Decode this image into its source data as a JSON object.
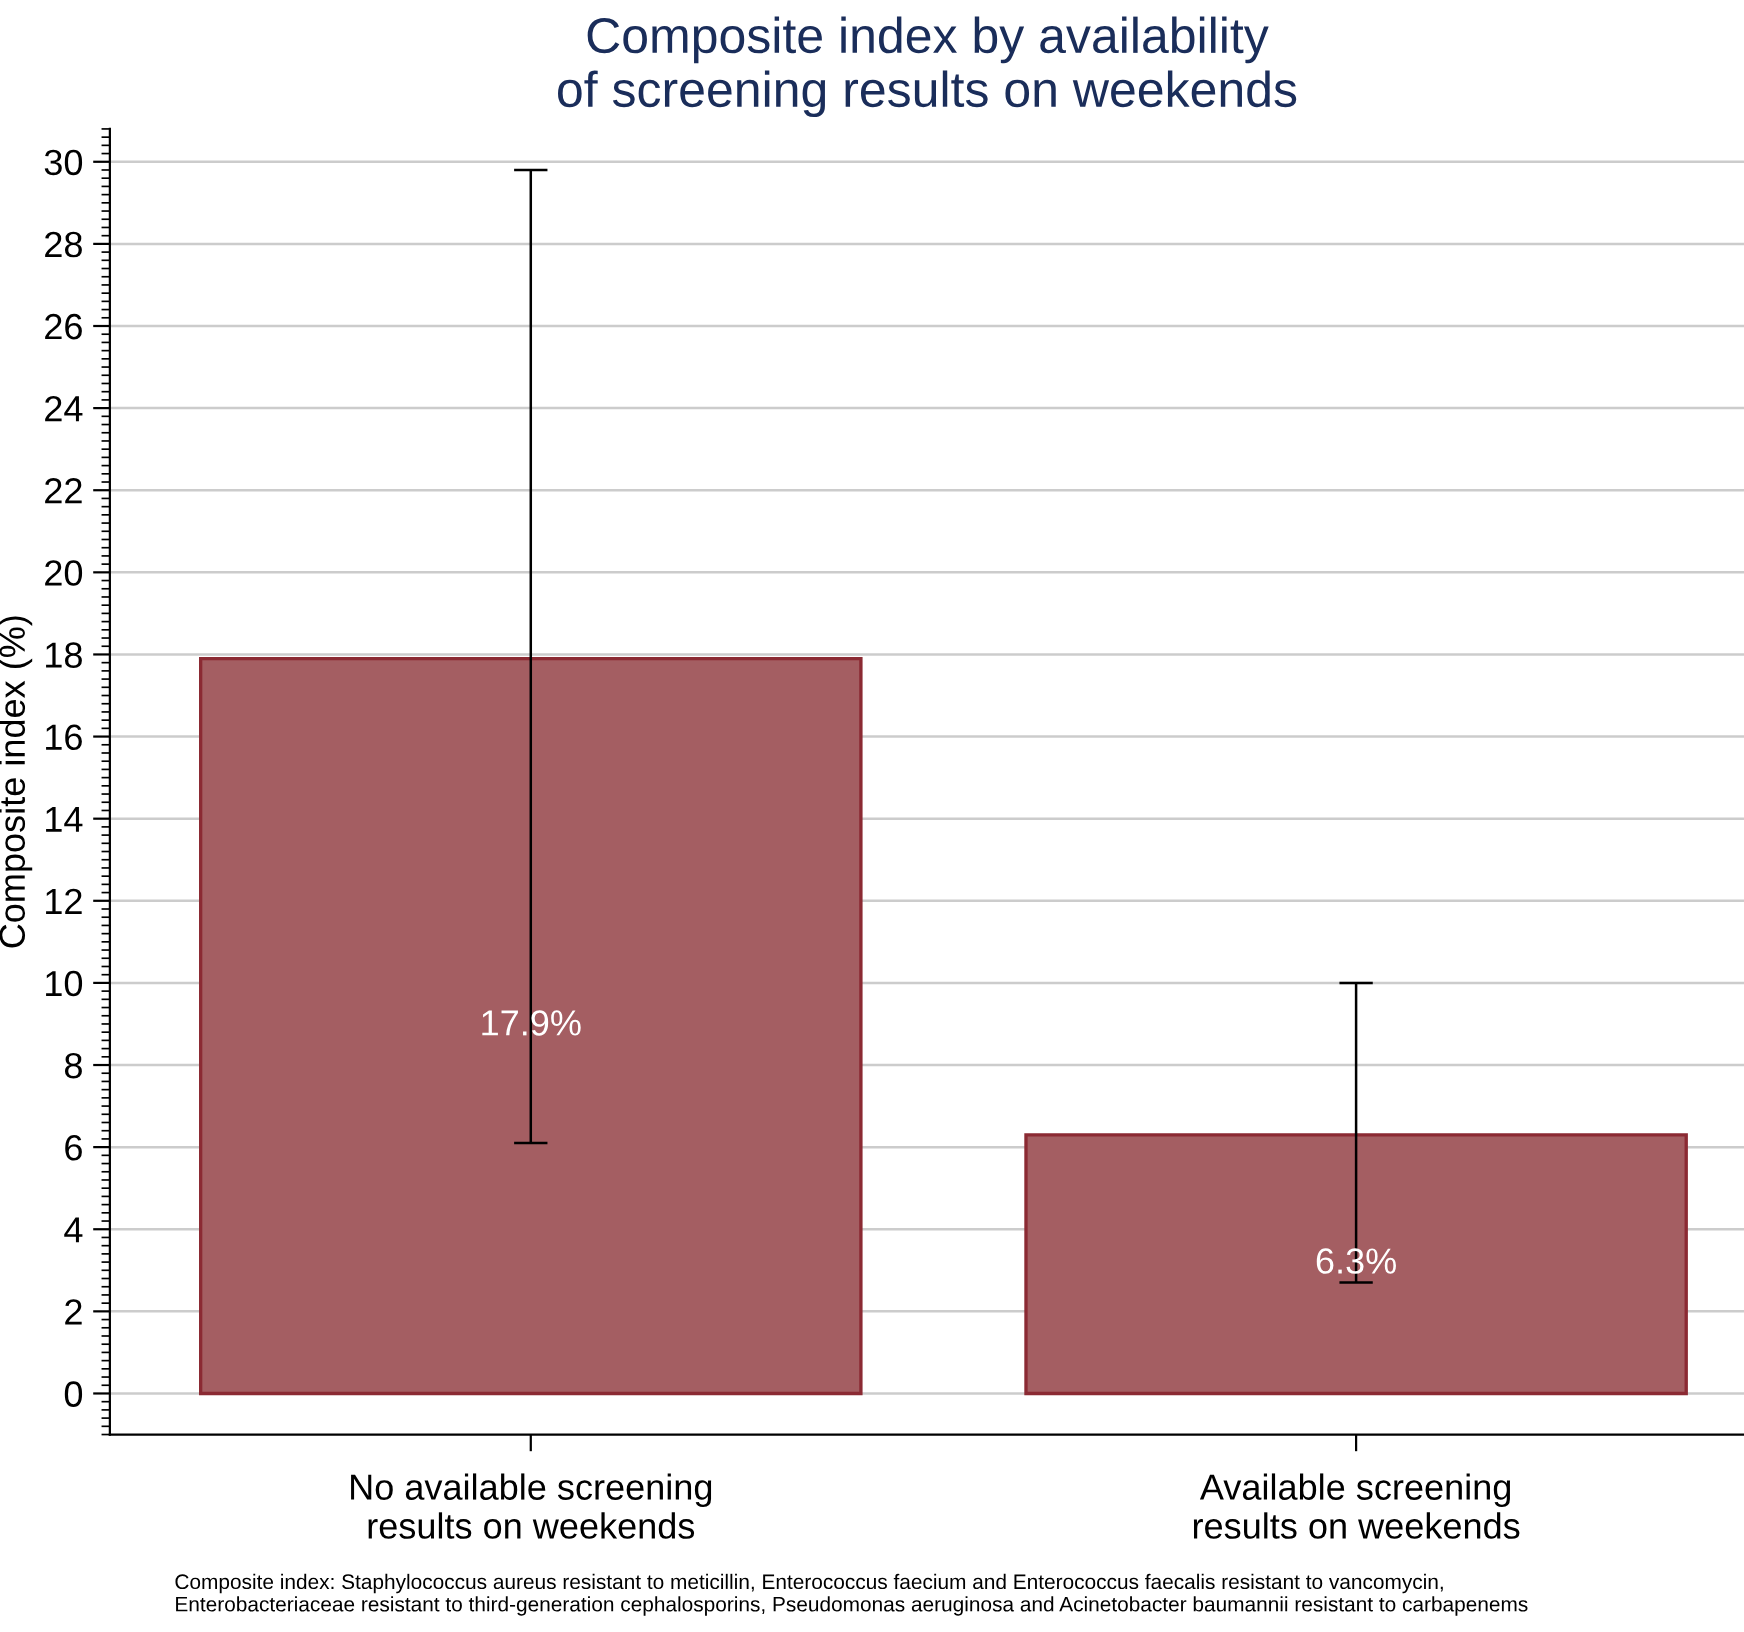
{
  "chart_data": {
    "type": "bar",
    "title": "Composite index by availability\nof screening results on weekends",
    "ylabel": "Composite index (%)",
    "categories": [
      "No available screening\nresults on weekends",
      "Available screening\nresults on weekends"
    ],
    "values": [
      17.9,
      6.3
    ],
    "errors": [
      [
        6.1,
        29.8
      ],
      [
        2.7,
        10.0
      ]
    ],
    "value_labels": [
      "17.9%",
      "6.3%"
    ],
    "color": "#a45e62",
    "ylim": [
      -1,
      30.8
    ],
    "yticks": [
      0,
      2,
      4,
      6,
      8,
      10,
      12,
      14,
      16,
      18,
      20,
      22,
      24,
      26,
      28,
      30
    ],
    "grid": "y",
    "annotations": [
      "Composite index: Staphylococcus aureus resistant to meticillin, Enterococcus faecium and Enterococcus faecalis resistant to vancomycin,\nEnterobacteriaceae resistant to third-generation cephalosporins, Pseudomonas aeruginosa and Acinetobacter baumannii resistant to carbapenems"
    ]
  }
}
